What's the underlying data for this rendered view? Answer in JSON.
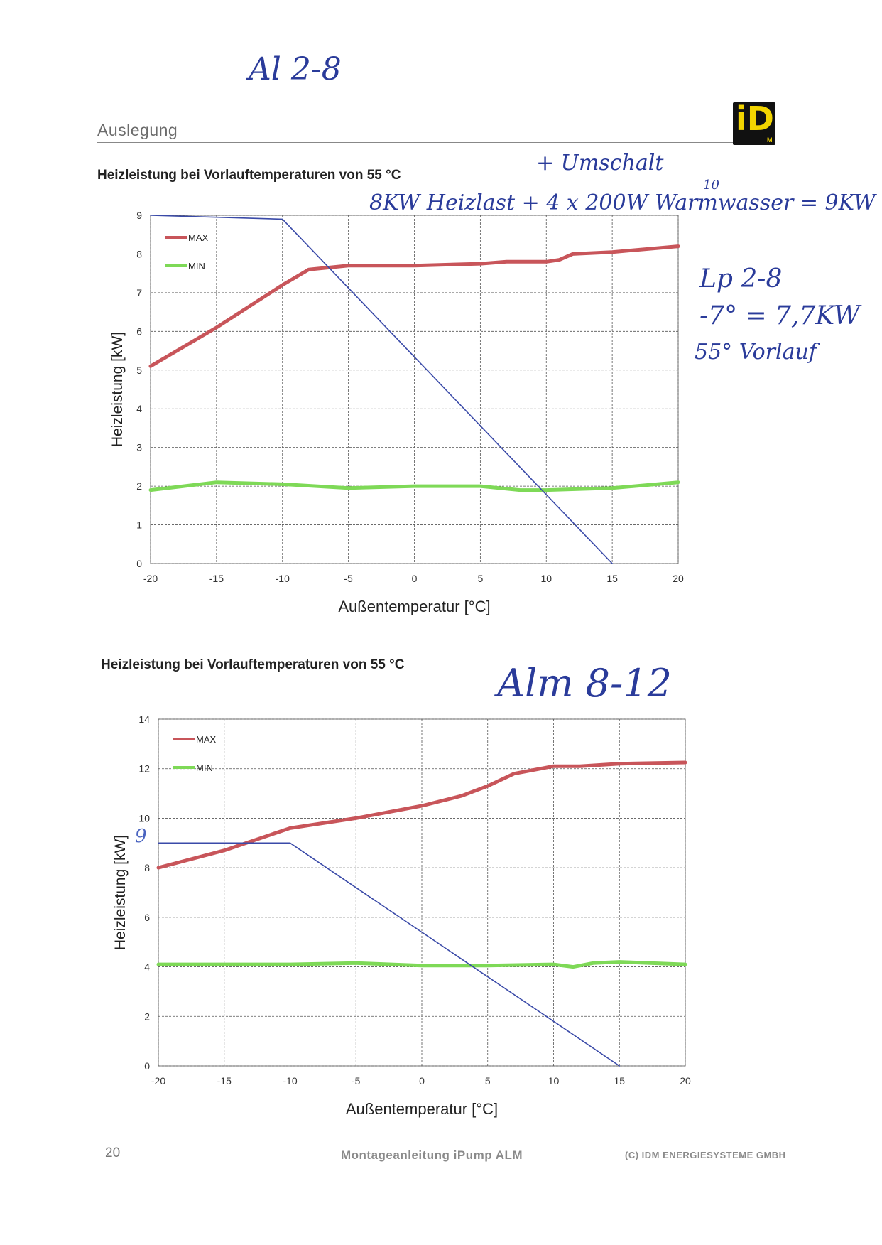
{
  "header": {
    "section_title": "Auslegung",
    "logo_text": "iD",
    "logo_sub": "M"
  },
  "footer": {
    "page_number": "20",
    "manual": "Montageanleitung iPump ALM",
    "copyright": "(C) IDM ENERGIESYSTEME GMBH"
  },
  "handwriting": {
    "top": "Al 2-8",
    "plus_note": "+ Umschalt",
    "ten": "10",
    "load_note": "8KW Heizlast + 4 x 200W Warmwasser = 9KW",
    "note_line1": "Lp 2-8",
    "note_line2": "-7° = 7,7KW",
    "note_line3": "55° Vorlauf",
    "alm_label": "Alm 8-12",
    "nine_mark": "9"
  },
  "colors": {
    "max": "#c8555a",
    "min": "#7ed957",
    "load_line": "#3a4aa8",
    "grid": "#555555"
  },
  "chart_data": [
    {
      "type": "line",
      "title": "Heizleistung bei Vorlauftemperaturen von 55 °C",
      "xlabel": "Außentemperatur [°C]",
      "ylabel": "Heizleistung [kW]",
      "x_ticks": [
        "-20",
        "-15",
        "-10",
        "-5",
        "0",
        "5",
        "10",
        "15",
        "20"
      ],
      "y_ticks": [
        "0",
        "1",
        "2",
        "3",
        "4",
        "5",
        "6",
        "7",
        "8",
        "9"
      ],
      "xlim": [
        -20,
        20
      ],
      "ylim": [
        0,
        9
      ],
      "legend": "top-left",
      "grid": true,
      "series": [
        {
          "name": "MAX",
          "color": "#c8555a",
          "x": [
            -20,
            -15,
            -10,
            -8,
            -5,
            0,
            5,
            7,
            10,
            11,
            12,
            15,
            20
          ],
          "y": [
            5.1,
            6.1,
            7.2,
            7.6,
            7.7,
            7.7,
            7.75,
            7.8,
            7.8,
            7.85,
            8.0,
            8.05,
            8.2
          ]
        },
        {
          "name": "MIN",
          "color": "#7ed957",
          "x": [
            -20,
            -15,
            -10,
            -5,
            0,
            5,
            8,
            10,
            15,
            20
          ],
          "y": [
            1.9,
            2.1,
            2.05,
            1.95,
            2.0,
            2.0,
            1.9,
            1.9,
            1.95,
            2.1
          ]
        },
        {
          "color": "#3a4aa8",
          "x": [
            -20,
            -10,
            15
          ],
          "y": [
            9.0,
            8.9,
            0.0
          ]
        }
      ]
    },
    {
      "type": "line",
      "title": "Heizleistung bei Vorlauftemperaturen von 55 °C",
      "xlabel": "Außentemperatur [°C]",
      "ylabel": "Heizleistung [kW]",
      "x_ticks": [
        "-20",
        "-15",
        "-10",
        "-5",
        "0",
        "5",
        "10",
        "15",
        "20"
      ],
      "y_ticks": [
        "0",
        "2",
        "4",
        "6",
        "8",
        "10",
        "12",
        "14"
      ],
      "xlim": [
        -20,
        20
      ],
      "ylim": [
        0,
        14
      ],
      "legend": "top-left",
      "grid": true,
      "series": [
        {
          "name": "MAX",
          "color": "#c8555a",
          "x": [
            -20,
            -15,
            -10,
            -5,
            0,
            3,
            5,
            7,
            10,
            12,
            15,
            20
          ],
          "y": [
            8.0,
            8.7,
            9.6,
            10.0,
            10.5,
            10.9,
            11.3,
            11.8,
            12.1,
            12.1,
            12.2,
            12.25
          ]
        },
        {
          "name": "MIN",
          "color": "#7ed957",
          "x": [
            -20,
            -15,
            -10,
            -5,
            0,
            5,
            10,
            11.5,
            13,
            15,
            20
          ],
          "y": [
            4.1,
            4.1,
            4.1,
            4.15,
            4.05,
            4.05,
            4.1,
            4.0,
            4.15,
            4.2,
            4.1
          ]
        },
        {
          "color": "#3a4aa8",
          "x": [
            -20,
            -10,
            15
          ],
          "y": [
            9.0,
            9.0,
            0.0
          ]
        }
      ]
    }
  ]
}
